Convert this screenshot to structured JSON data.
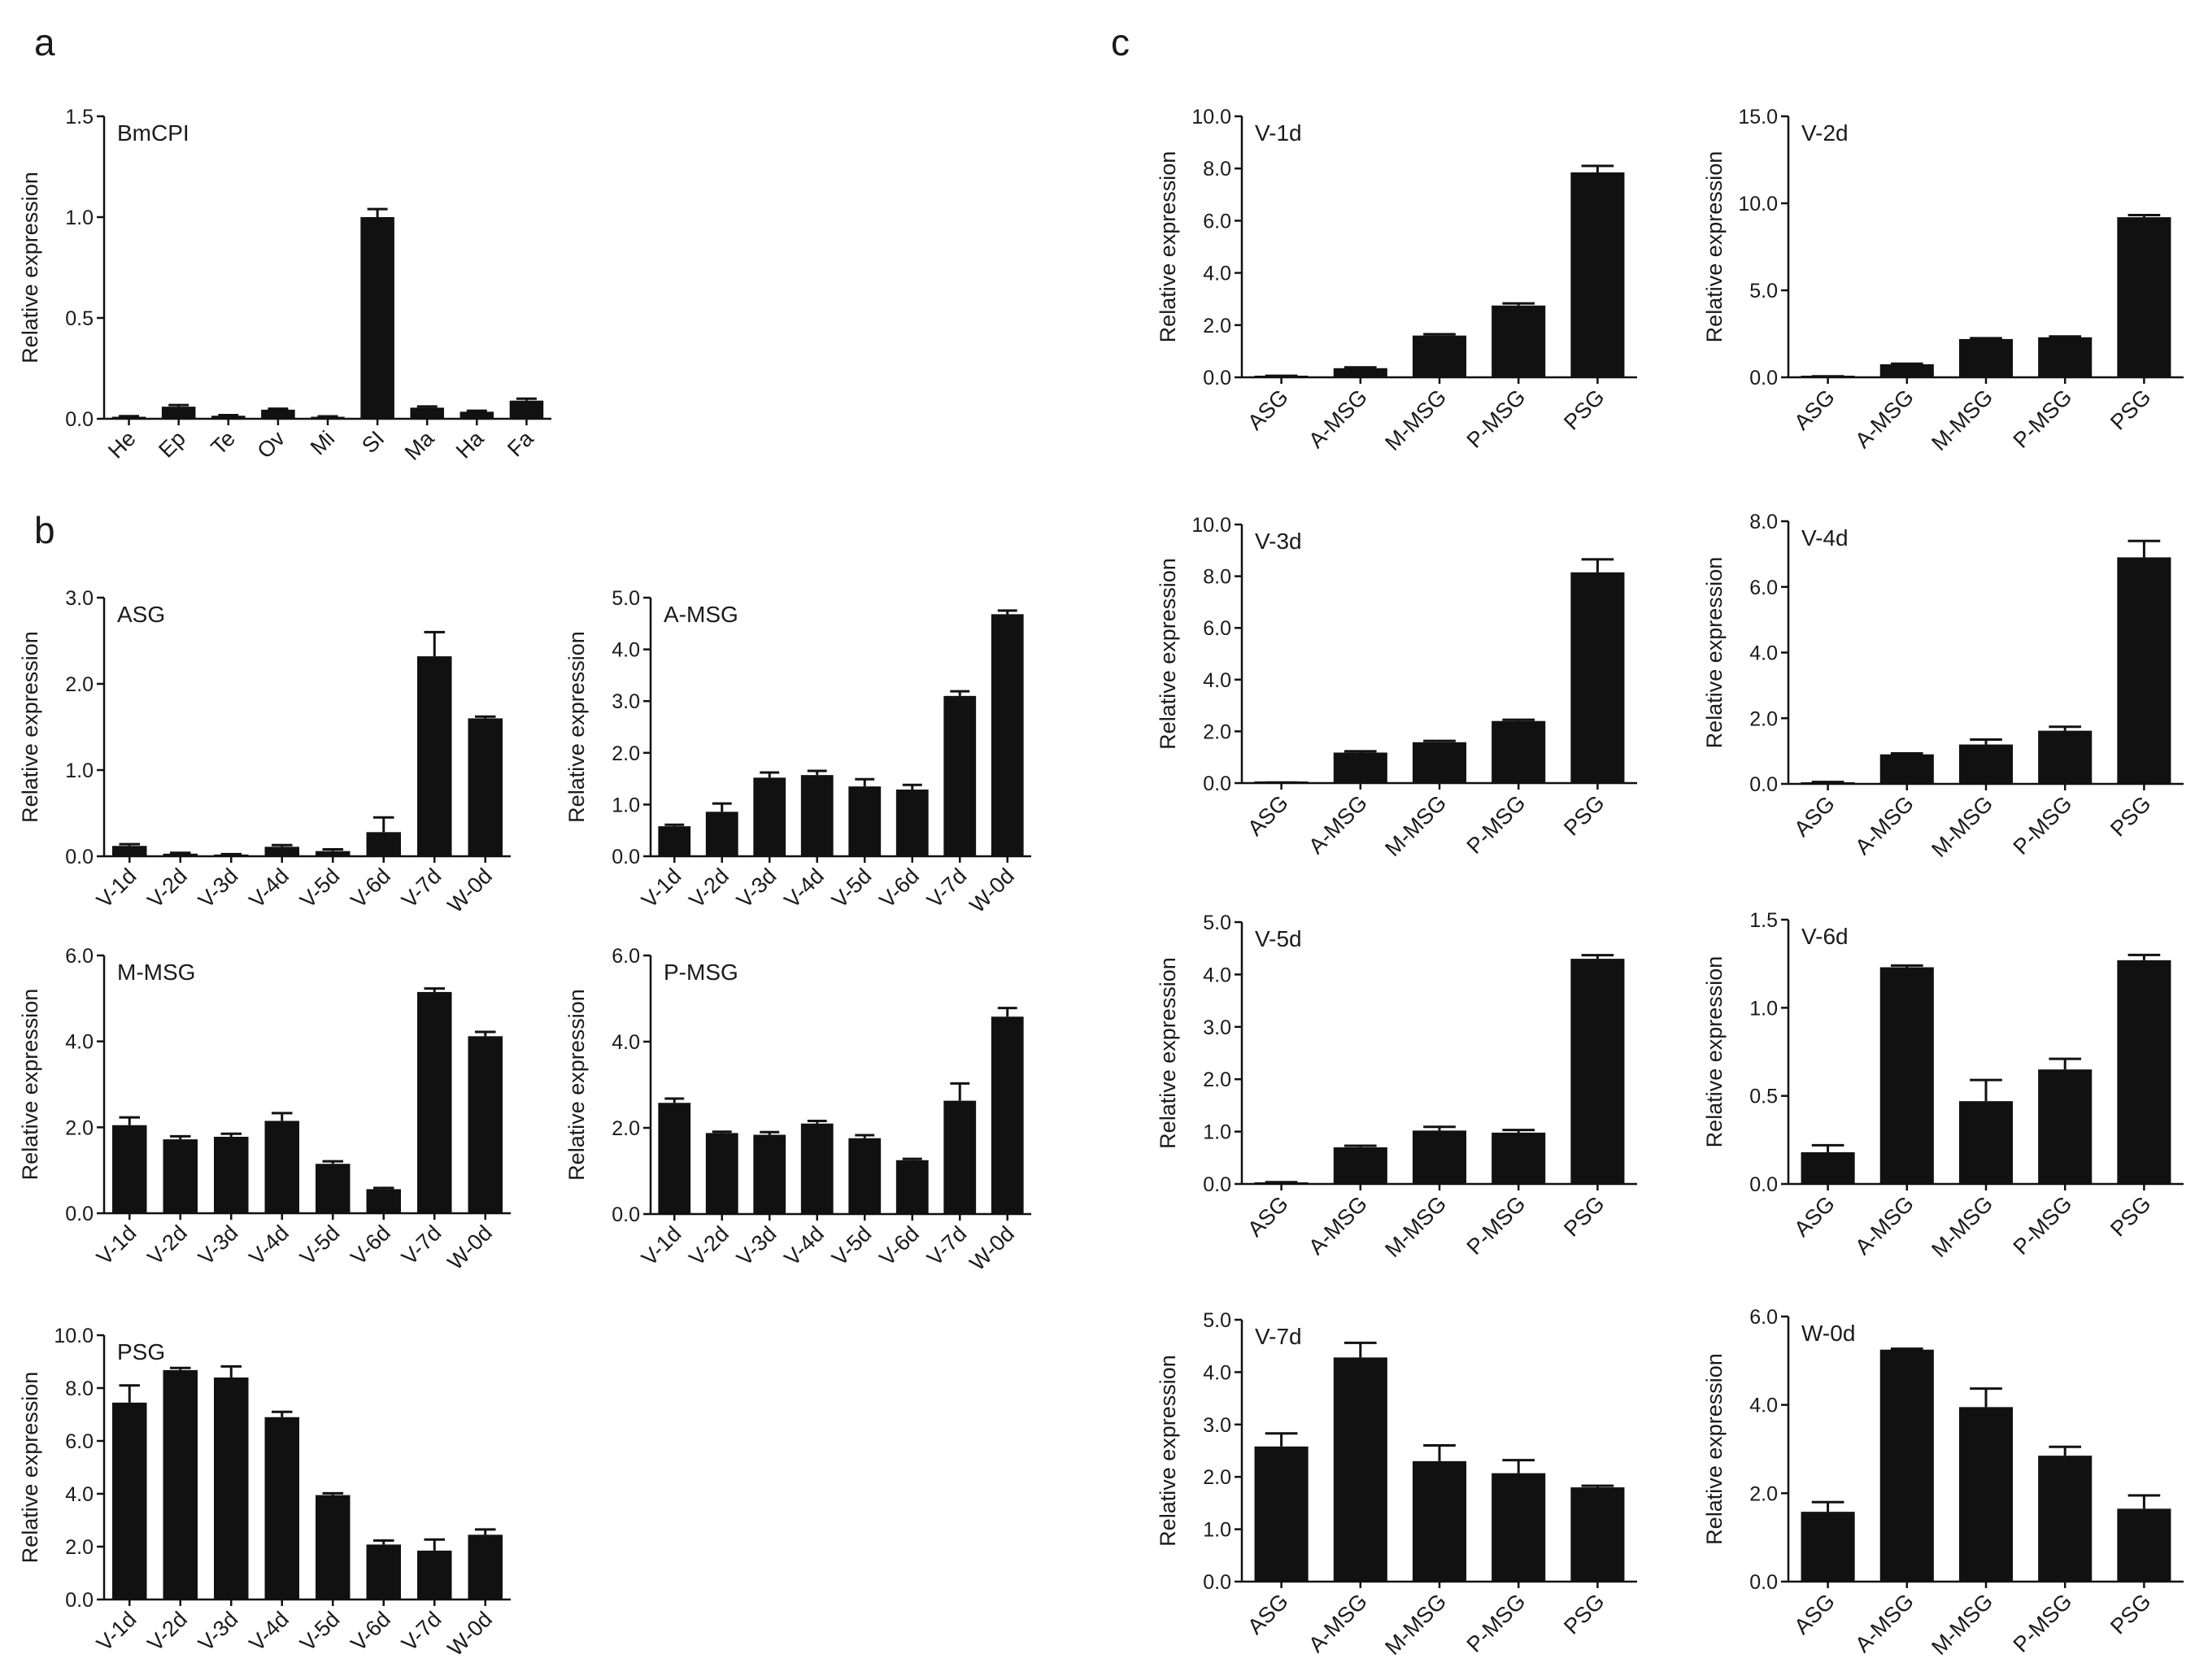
{
  "panel_labels": [
    "a",
    "b",
    "c"
  ],
  "colors": {
    "bar": "#111111",
    "axis": "#111111",
    "text": "#1a1a1a"
  },
  "chart_data": [
    {
      "id": "a-bmcpi",
      "panel": "a",
      "type": "bar",
      "title": "BmCPI",
      "ylabel": "Relative expression",
      "categories": [
        "He",
        "Ep",
        "Te",
        "Ov",
        "Mi",
        "SI",
        "Ma",
        "Ha",
        "Fa"
      ],
      "values": [
        0.01,
        0.06,
        0.015,
        0.045,
        0.01,
        1.0,
        0.055,
        0.035,
        0.09
      ],
      "errors": [
        0.003,
        0.008,
        0.003,
        0.005,
        0.002,
        0.04,
        0.006,
        0.005,
        0.01
      ],
      "ylim": [
        0,
        1.5
      ],
      "yticks": [
        0,
        0.5,
        1.0,
        1.5
      ],
      "yticklabels": [
        "0.0",
        "0.5",
        "1.0",
        "1.5"
      ]
    },
    {
      "id": "b-asg",
      "panel": "b",
      "type": "bar",
      "title": "ASG",
      "ylabel": "Relative expression",
      "categories": [
        "V-1d",
        "V-2d",
        "V-3d",
        "V-4d",
        "V-5d",
        "V-6d",
        "V-7d",
        "W-0d"
      ],
      "values": [
        0.12,
        0.03,
        0.02,
        0.11,
        0.06,
        0.28,
        2.32,
        1.6
      ],
      "errors": [
        0.02,
        0.01,
        0.005,
        0.02,
        0.02,
        0.17,
        0.28,
        0.02
      ],
      "ylim": [
        0,
        3.0
      ],
      "yticks": [
        0,
        1,
        2,
        3
      ],
      "yticklabels": [
        "0.0",
        "1.0",
        "2.0",
        "3.0"
      ]
    },
    {
      "id": "b-amsg",
      "panel": "b",
      "type": "bar",
      "title": "A-MSG",
      "ylabel": "Relative expression",
      "categories": [
        "V-1d",
        "V-2d",
        "V-3d",
        "V-4d",
        "V-5d",
        "V-6d",
        "V-7d",
        "W-0d"
      ],
      "values": [
        0.58,
        0.86,
        1.52,
        1.57,
        1.35,
        1.29,
        3.1,
        4.68
      ],
      "errors": [
        0.03,
        0.16,
        0.1,
        0.08,
        0.14,
        0.09,
        0.09,
        0.07
      ],
      "ylim": [
        0,
        5.0
      ],
      "yticks": [
        0,
        1,
        2,
        3,
        4,
        5
      ],
      "yticklabels": [
        "0.0",
        "1.0",
        "2.0",
        "3.0",
        "4.0",
        "5.0"
      ]
    },
    {
      "id": "b-mmsg",
      "panel": "b",
      "type": "bar",
      "title": "M-MSG",
      "ylabel": "Relative expression",
      "categories": [
        "V-1d",
        "V-2d",
        "V-3d",
        "V-4d",
        "V-5d",
        "V-6d",
        "V-7d",
        "W-0d"
      ],
      "values": [
        2.05,
        1.72,
        1.78,
        2.15,
        1.15,
        0.56,
        5.15,
        4.12
      ],
      "errors": [
        0.18,
        0.07,
        0.07,
        0.18,
        0.06,
        0.03,
        0.08,
        0.1
      ],
      "ylim": [
        0,
        6.0
      ],
      "yticks": [
        0,
        2,
        4,
        6
      ],
      "yticklabels": [
        "0.0",
        "2.0",
        "4.0",
        "6.0"
      ]
    },
    {
      "id": "b-pmsg",
      "panel": "b",
      "type": "bar",
      "title": "P-MSG",
      "ylabel": "Relative expression",
      "categories": [
        "V-1d",
        "V-2d",
        "V-3d",
        "V-4d",
        "V-5d",
        "V-6d",
        "V-7d",
        "W-0d"
      ],
      "values": [
        2.58,
        1.88,
        1.84,
        2.1,
        1.76,
        1.25,
        2.63,
        4.58
      ],
      "errors": [
        0.1,
        0.03,
        0.06,
        0.06,
        0.07,
        0.03,
        0.4,
        0.2
      ],
      "ylim": [
        0,
        6.0
      ],
      "yticks": [
        0,
        2,
        4,
        6
      ],
      "yticklabels": [
        "0.0",
        "2.0",
        "4.0",
        "6.0"
      ]
    },
    {
      "id": "b-psg",
      "panel": "b",
      "type": "bar",
      "title": "PSG",
      "ylabel": "Relative expression",
      "categories": [
        "V-1d",
        "V-2d",
        "V-3d",
        "V-4d",
        "V-5d",
        "V-6d",
        "V-7d",
        "W-0d"
      ],
      "values": [
        7.45,
        8.68,
        8.4,
        6.9,
        3.95,
        2.08,
        1.85,
        2.45
      ],
      "errors": [
        0.65,
        0.08,
        0.42,
        0.2,
        0.07,
        0.15,
        0.42,
        0.2
      ],
      "ylim": [
        0,
        10.0
      ],
      "yticks": [
        0,
        2,
        4,
        6,
        8,
        10
      ],
      "yticklabels": [
        "0.0",
        "2.0",
        "4.0",
        "6.0",
        "8.0",
        "10.0"
      ]
    },
    {
      "id": "c-v1d",
      "panel": "c",
      "type": "bar",
      "title": "V-1d",
      "ylabel": "Relative expression",
      "categories": [
        "ASG",
        "A-MSG",
        "M-MSG",
        "P-MSG",
        "PSG"
      ],
      "values": [
        0.05,
        0.35,
        1.6,
        2.75,
        7.85
      ],
      "errors": [
        0.01,
        0.03,
        0.05,
        0.08,
        0.25
      ],
      "ylim": [
        0,
        10.0
      ],
      "yticks": [
        0,
        2,
        4,
        6,
        8,
        10
      ],
      "yticklabels": [
        "0.0",
        "2.0",
        "4.0",
        "6.0",
        "8.0",
        "10.0"
      ]
    },
    {
      "id": "c-v2d",
      "panel": "c",
      "type": "bar",
      "title": "V-2d",
      "ylabel": "Relative expression",
      "categories": [
        "ASG",
        "A-MSG",
        "M-MSG",
        "P-MSG",
        "PSG"
      ],
      "values": [
        0.05,
        0.75,
        2.2,
        2.3,
        9.2
      ],
      "errors": [
        0.01,
        0.03,
        0.05,
        0.05,
        0.12
      ],
      "ylim": [
        0,
        15.0
      ],
      "yticks": [
        0,
        5,
        10,
        15
      ],
      "yticklabels": [
        "0.0",
        "5.0",
        "10.0",
        "15.0"
      ]
    },
    {
      "id": "c-v3d",
      "panel": "c",
      "type": "bar",
      "title": "V-3d",
      "ylabel": "Relative expression",
      "categories": [
        "ASG",
        "A-MSG",
        "M-MSG",
        "P-MSG",
        "PSG"
      ],
      "values": [
        0.02,
        1.18,
        1.58,
        2.4,
        8.15
      ],
      "errors": [
        0.005,
        0.05,
        0.05,
        0.05,
        0.5
      ],
      "ylim": [
        0,
        10.0
      ],
      "yticks": [
        0,
        2,
        4,
        6,
        8,
        10
      ],
      "yticklabels": [
        "0.0",
        "2.0",
        "4.0",
        "6.0",
        "8.0",
        "10.0"
      ]
    },
    {
      "id": "c-v4d",
      "panel": "c",
      "type": "bar",
      "title": "V-4d",
      "ylabel": "Relative expression",
      "categories": [
        "ASG",
        "A-MSG",
        "M-MSG",
        "P-MSG",
        "PSG"
      ],
      "values": [
        0.05,
        0.9,
        1.2,
        1.62,
        6.9
      ],
      "errors": [
        0.01,
        0.03,
        0.15,
        0.12,
        0.5
      ],
      "ylim": [
        0,
        8.0
      ],
      "yticks": [
        0,
        2,
        4,
        6,
        8
      ],
      "yticklabels": [
        "0.0",
        "2.0",
        "4.0",
        "6.0",
        "8.0"
      ]
    },
    {
      "id": "c-v5d",
      "panel": "c",
      "type": "bar",
      "title": "V-5d",
      "ylabel": "Relative expression",
      "categories": [
        "ASG",
        "A-MSG",
        "M-MSG",
        "P-MSG",
        "PSG"
      ],
      "values": [
        0.03,
        0.7,
        1.02,
        0.98,
        4.3
      ],
      "errors": [
        0.005,
        0.03,
        0.07,
        0.05,
        0.07
      ],
      "ylim": [
        0,
        5.0
      ],
      "yticks": [
        0,
        1,
        2,
        3,
        4,
        5
      ],
      "yticklabels": [
        "0.0",
        "1.0",
        "2.0",
        "3.0",
        "4.0",
        "5.0"
      ]
    },
    {
      "id": "c-v6d",
      "panel": "c",
      "type": "bar",
      "title": "V-6d",
      "ylabel": "Relative expression",
      "categories": [
        "ASG",
        "A-MSG",
        "M-MSG",
        "P-MSG",
        "PSG"
      ],
      "values": [
        0.18,
        1.23,
        0.47,
        0.65,
        1.27
      ],
      "errors": [
        0.04,
        0.01,
        0.12,
        0.06,
        0.03
      ],
      "ylim": [
        0,
        1.5
      ],
      "yticks": [
        0,
        0.5,
        1.0,
        1.5
      ],
      "yticklabels": [
        "0.0",
        "0.5",
        "1.0",
        "1.5"
      ]
    },
    {
      "id": "c-v7d",
      "panel": "c",
      "type": "bar",
      "title": "V-7d",
      "ylabel": "Relative expression",
      "categories": [
        "ASG",
        "A-MSG",
        "M-MSG",
        "P-MSG",
        "PSG"
      ],
      "values": [
        2.58,
        4.28,
        2.3,
        2.07,
        1.8
      ],
      "errors": [
        0.25,
        0.28,
        0.3,
        0.25,
        0.03
      ],
      "ylim": [
        0,
        5.0
      ],
      "yticks": [
        0,
        1,
        2,
        3,
        4,
        5
      ],
      "yticklabels": [
        "0.0",
        "1.0",
        "2.0",
        "3.0",
        "4.0",
        "5.0"
      ]
    },
    {
      "id": "c-w0d",
      "panel": "c",
      "type": "bar",
      "title": "W-0d",
      "ylabel": "Relative expression",
      "categories": [
        "ASG",
        "A-MSG",
        "M-MSG",
        "P-MSG",
        "PSG"
      ],
      "values": [
        1.58,
        5.25,
        3.95,
        2.85,
        1.65
      ],
      "errors": [
        0.22,
        0.02,
        0.42,
        0.2,
        0.3
      ],
      "ylim": [
        0,
        6.0
      ],
      "yticks": [
        0,
        2,
        4,
        6
      ],
      "yticklabels": [
        "0.0",
        "2.0",
        "4.0",
        "6.0"
      ]
    }
  ]
}
